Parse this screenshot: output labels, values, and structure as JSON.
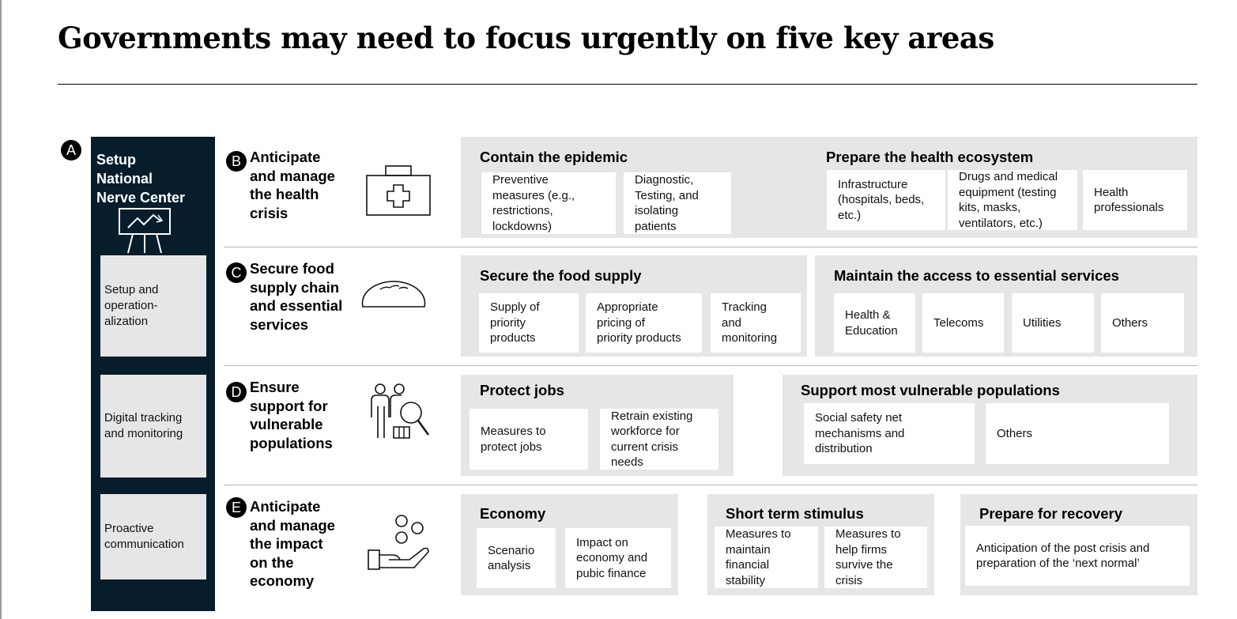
{
  "title": "Governments may need to focus urgently on five key areas",
  "nerve_center": {
    "badge": "A",
    "title": "Setup\nNational\nNerve Center",
    "icon": "presentation-chart-icon",
    "items": [
      "Setup and\noperation-\nalization",
      "Digital tracking\nand monitoring",
      "Proactive\ncommunication"
    ]
  },
  "rows": [
    {
      "badge": "B",
      "title": "Anticipate\nand manage\nthe health\ncrisis",
      "icon": "medical-kit-icon",
      "panels": [
        {
          "title": "Contain the epidemic",
          "cards": [
            "Preventive\nmeasures (e.g.,\nrestrictions,\nlockdowns)",
            "Diagnostic,\nTesting, and\nisolating\npatients"
          ]
        },
        {
          "title": "Prepare the health ecosystem",
          "cards": [
            "Infrastructure\n(hospitals, beds,\netc.)",
            "Drugs and medical\nequipment (testing\nkits, masks,\nventilators, etc.)",
            "Health\nprofessionals"
          ]
        }
      ]
    },
    {
      "badge": "C",
      "title": "Secure food\nsupply chain\nand essential\nservices",
      "icon": "bread-icon",
      "panels": [
        {
          "title": "Secure the food supply",
          "cards": [
            "Supply of\npriority\nproducts",
            "Appropriate\npricing of\npriority products",
            "Tracking\nand\nmonitoring"
          ]
        },
        {
          "title": "Maintain the access to essential services",
          "cards": [
            "Health &\nEducation",
            "Telecoms",
            "Utilities",
            "Others"
          ]
        }
      ]
    },
    {
      "badge": "D",
      "title": "Ensure\nsupport for\nvulnerable\npopulations",
      "icon": "people-search-icon",
      "panels": [
        {
          "title": "Protect jobs",
          "cards": [
            "Measures to\nprotect jobs",
            "Retrain existing\nworkforce for\ncurrent crisis\nneeds"
          ]
        },
        {
          "title": "Support most vulnerable populations",
          "cards": [
            "Social safety net\nmechanisms and\ndistribution",
            "Others"
          ]
        }
      ]
    },
    {
      "badge": "E",
      "title": "Anticipate\nand manage\nthe impact\non the\neconomy",
      "icon": "hand-coins-icon",
      "panels": [
        {
          "title": "Economy",
          "cards": [
            "Scenario\nanalysis",
            "Impact on\neconomy and\npubic finance"
          ]
        },
        {
          "title": "Short term stimulus",
          "cards": [
            "Measures to\nmaintain\nfinancial\nstability",
            "Measures to\nhelp firms\nsurvive the\ncrisis"
          ]
        },
        {
          "title": "Prepare for recovery",
          "cards": [
            "Anticipation of the post crisis and\npreparation of the ‘next normal’"
          ]
        }
      ]
    }
  ]
}
